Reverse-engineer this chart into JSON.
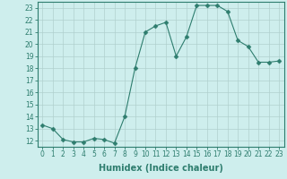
{
  "x": [
    0,
    1,
    2,
    3,
    4,
    5,
    6,
    7,
    8,
    9,
    10,
    11,
    12,
    13,
    14,
    15,
    16,
    17,
    18,
    19,
    20,
    21,
    22,
    23
  ],
  "y": [
    13.3,
    13.0,
    12.1,
    11.9,
    11.9,
    12.2,
    12.1,
    11.8,
    14.0,
    18.0,
    21.0,
    21.5,
    21.8,
    19.0,
    20.6,
    23.2,
    23.2,
    23.2,
    22.7,
    20.3,
    19.8,
    18.5,
    18.5,
    18.6
  ],
  "line_color": "#2e7d6e",
  "marker": "D",
  "marker_size": 2.5,
  "bg_color": "#ceeeed",
  "grid_color": "#b0d0ce",
  "xlabel": "Humidex (Indice chaleur)",
  "xlim": [
    -0.5,
    23.5
  ],
  "ylim": [
    11.5,
    23.5
  ],
  "yticks": [
    12,
    13,
    14,
    15,
    16,
    17,
    18,
    19,
    20,
    21,
    22,
    23
  ],
  "xticks": [
    0,
    1,
    2,
    3,
    4,
    5,
    6,
    7,
    8,
    9,
    10,
    11,
    12,
    13,
    14,
    15,
    16,
    17,
    18,
    19,
    20,
    21,
    22,
    23
  ],
  "tick_color": "#2e7d6e",
  "font_color": "#2e7d6e",
  "label_fontsize": 7,
  "tick_fontsize": 5.5
}
